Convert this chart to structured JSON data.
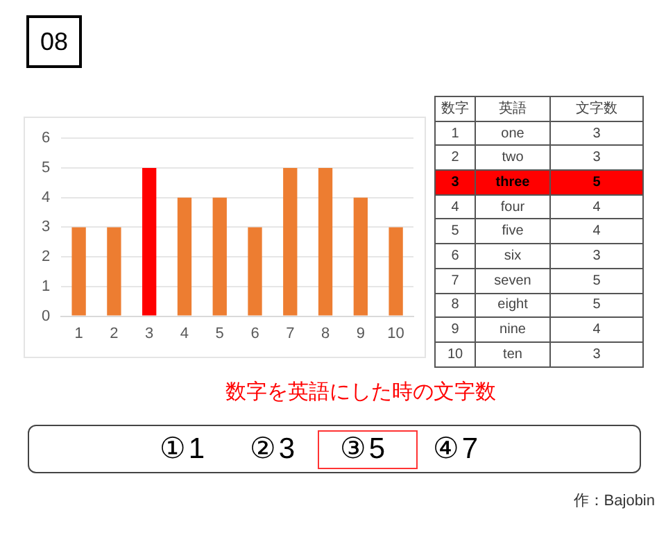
{
  "chart_data": {
    "type": "bar",
    "categories": [
      "1",
      "2",
      "3",
      "4",
      "5",
      "6",
      "7",
      "8",
      "9",
      "10"
    ],
    "values": [
      3,
      3,
      5,
      4,
      4,
      3,
      5,
      5,
      4,
      3
    ],
    "color": "#ed7d31",
    "colors": [
      "#ed7d31",
      "#ed7d31",
      "#ff0000",
      "#ed7d31",
      "#ed7d31",
      "#ed7d31",
      "#ed7d31",
      "#ed7d31",
      "#ed7d31",
      "#ed7d31"
    ],
    "ylim": [
      0,
      6
    ],
    "yticks": [
      0,
      1,
      2,
      3,
      4,
      5,
      6
    ],
    "grid": "y",
    "legend": false,
    "annotations": [
      "08",
      "数字",
      "英語",
      "文字数",
      "one",
      "two",
      "three",
      "four",
      "five",
      "six",
      "seven",
      "eight",
      "nine",
      "ten",
      "数字を英語にした時の文字数",
      "①1",
      "②3",
      "③5",
      "④7",
      "作：Bajobin"
    ]
  }
}
